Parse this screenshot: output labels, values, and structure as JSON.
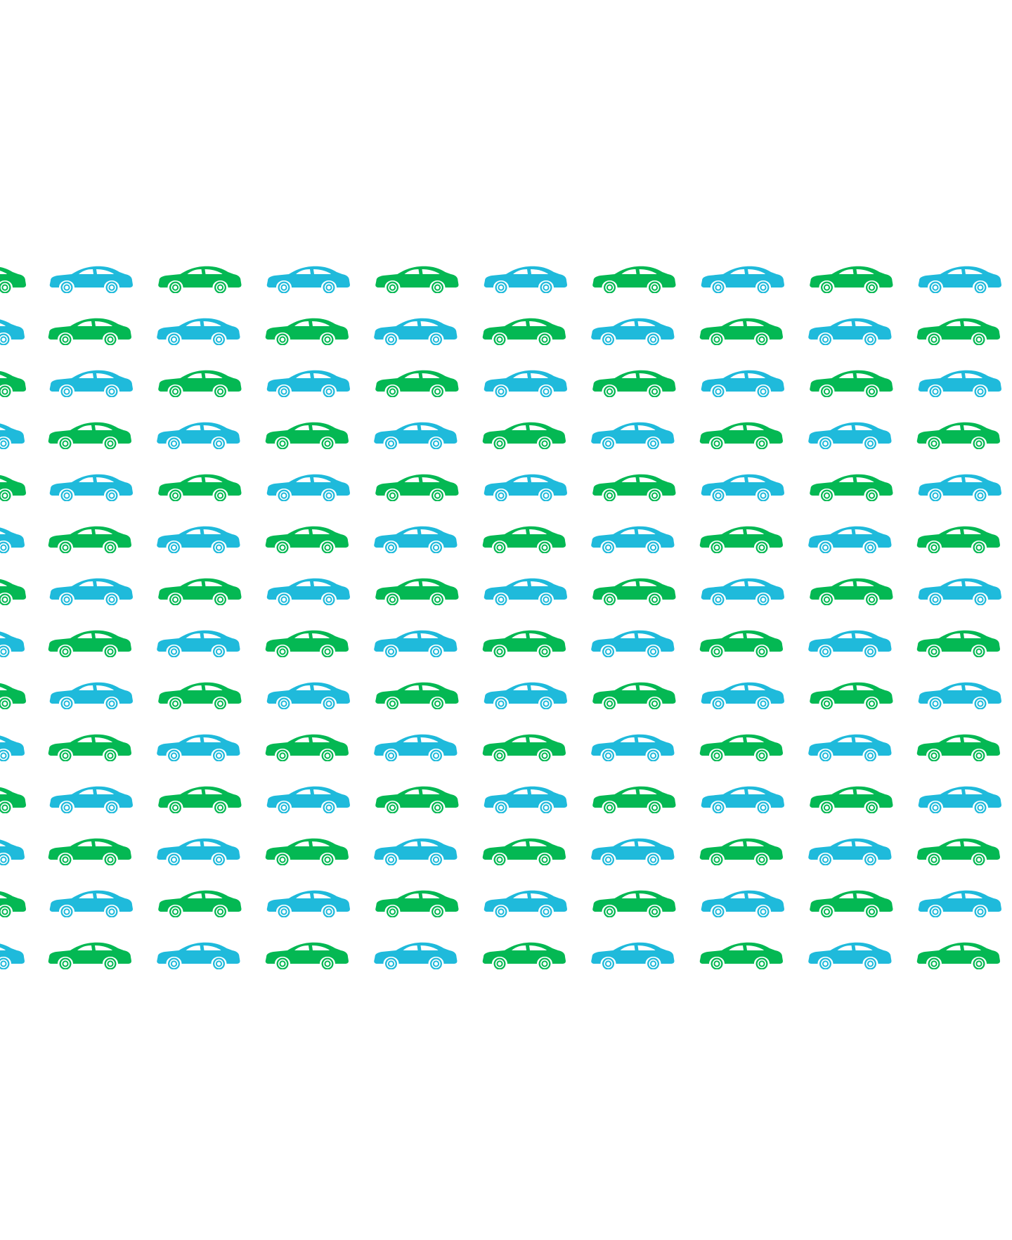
{
  "pattern": {
    "description_icon": "car-icon",
    "rows": 14,
    "columns": 10,
    "leading_partial_column": true,
    "colors": {
      "green": "#04B853",
      "blue": "#1FBADB",
      "background": "#FFFFFF"
    },
    "first_row_starts_with": "blue",
    "partial_column_starts_with": "green"
  }
}
